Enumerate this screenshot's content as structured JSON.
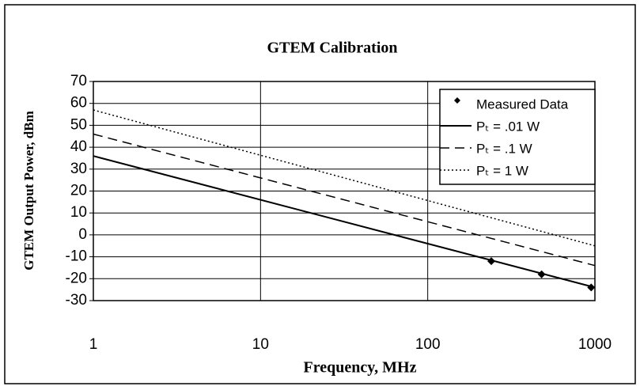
{
  "chart_data": {
    "type": "line",
    "title": "GTEM Calibration",
    "xlabel": "Frequency, MHz",
    "ylabel": "GTEM Output Power, dBm",
    "xscale": "log",
    "xlim": [
      1,
      1000
    ],
    "xticks": [
      1,
      10,
      100,
      1000
    ],
    "ylim": [
      -30,
      70
    ],
    "yticks": [
      -30,
      -20,
      -10,
      0,
      10,
      20,
      30,
      40,
      50,
      60,
      70
    ],
    "grid": true,
    "legend": "upper right",
    "series": [
      {
        "name": "Measured Data",
        "type": "scatter",
        "color": "#000000",
        "x": [
          240,
          480,
          950
        ],
        "values": [
          -12,
          -18,
          -24
        ]
      },
      {
        "name": "Pₜ = .01 W",
        "type": "line",
        "dash": "solid",
        "color": "#000000",
        "x": [
          1,
          1000
        ],
        "values": [
          36,
          -24
        ]
      },
      {
        "name": "Pₜ = .1 W",
        "type": "line",
        "dash": "dashed",
        "color": "#000000",
        "x": [
          1,
          1000
        ],
        "values": [
          46,
          -14
        ]
      },
      {
        "name": "Pₜ = 1 W",
        "type": "line",
        "dash": "dotted",
        "color": "#000000",
        "x": [
          1,
          1000
        ],
        "values": [
          57,
          -5
        ]
      }
    ]
  }
}
